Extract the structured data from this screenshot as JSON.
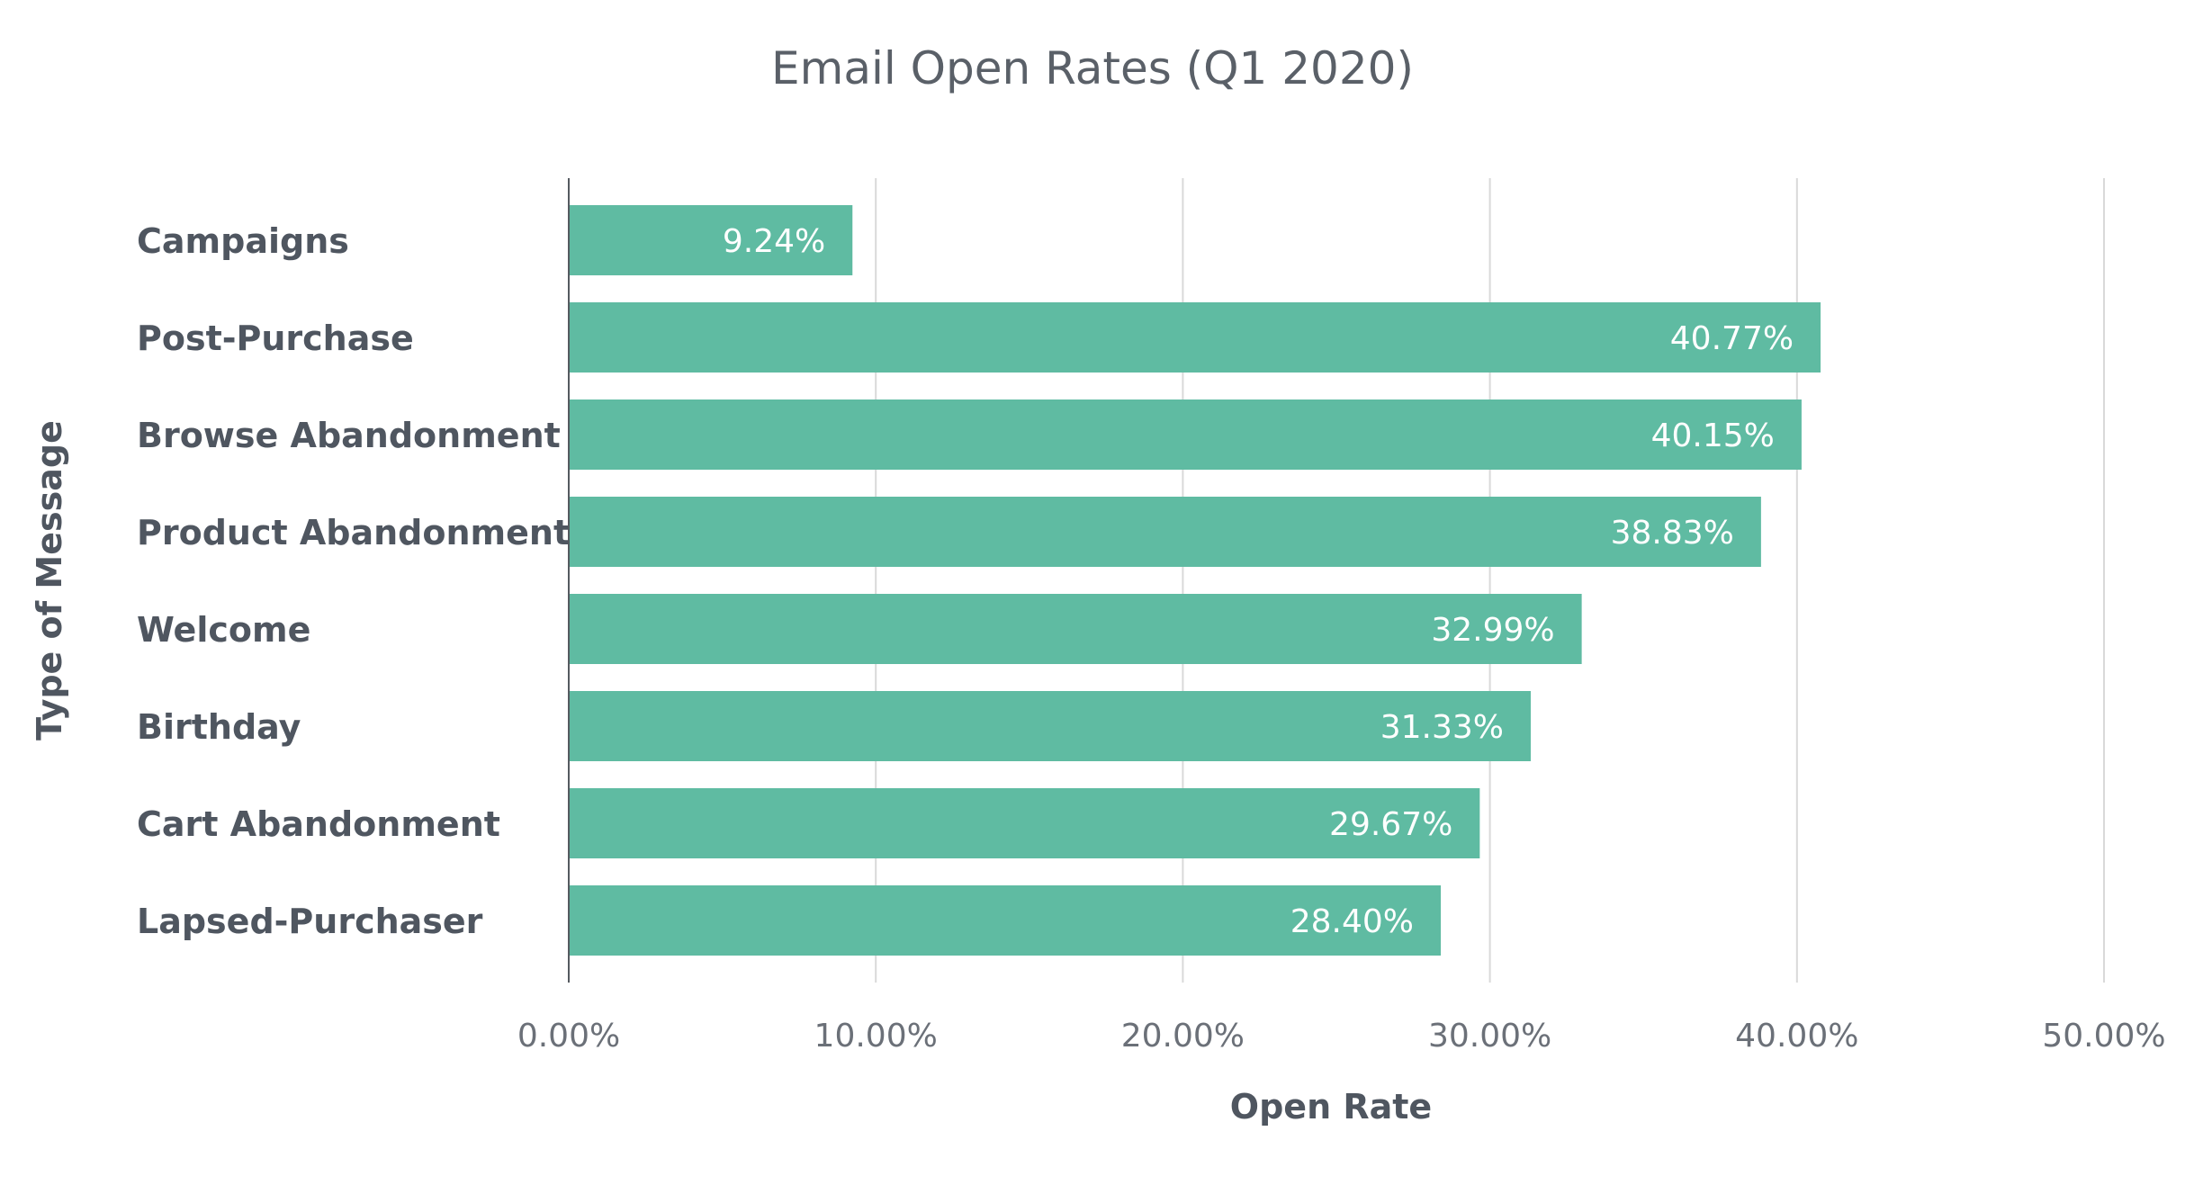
{
  "chart_data": {
    "type": "bar",
    "orientation": "horizontal",
    "title": "Email Open Rates (Q1 2020)",
    "xlabel": "Open Rate",
    "ylabel": "Type of Message",
    "categories": [
      "Campaigns",
      "Post-Purchase",
      "Browse Abandonment",
      "Product Abandonment",
      "Welcome",
      "Birthday",
      "Cart Abandonment",
      "Lapsed-Purchaser"
    ],
    "values": [
      9.24,
      40.77,
      40.15,
      38.83,
      32.99,
      31.33,
      29.67,
      28.4
    ],
    "data_labels": [
      "9.24%",
      "40.77%",
      "40.15%",
      "38.83%",
      "32.99%",
      "31.33%",
      "29.67%",
      "28.40%"
    ],
    "xlim": [
      0,
      50
    ],
    "xticks": [
      0,
      10,
      20,
      30,
      40,
      50
    ],
    "xtick_labels": [
      "0.00%",
      "10.00%",
      "20.00%",
      "30.00%",
      "40.00%",
      "50.00%"
    ],
    "grid": true,
    "legend": "none",
    "colors": {
      "bar": "#5fbba2",
      "text": "#4f5660",
      "grid": "#d9d9d9"
    }
  }
}
